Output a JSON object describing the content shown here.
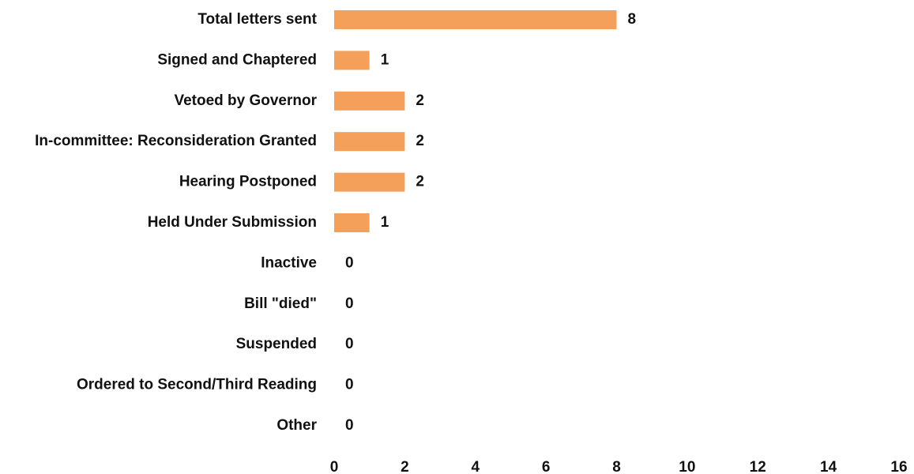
{
  "chart_data": {
    "type": "bar",
    "orientation": "horizontal",
    "categories": [
      "Total letters sent",
      "Signed and Chaptered",
      "Vetoed by Governor",
      "In-committee: Reconsideration Granted",
      "Hearing Postponed",
      "Held Under Submission",
      "Inactive",
      "Bill \"died\"",
      "Suspended",
      "Ordered to Second/Third Reading",
      "Other"
    ],
    "values": [
      8,
      1,
      2,
      2,
      2,
      1,
      0,
      0,
      0,
      0,
      0
    ],
    "data_labels": [
      "8",
      "1",
      "2",
      "2",
      "2",
      "1",
      "0",
      "0",
      "0",
      "0",
      "0"
    ],
    "xlim": [
      0,
      16
    ],
    "x_ticks": [
      "0",
      "2",
      "4",
      "6",
      "8",
      "10",
      "12",
      "14",
      "16"
    ],
    "title": "",
    "xlabel": "",
    "ylabel": "",
    "grid": false,
    "legend": "none",
    "bar_color": "#F4A05A",
    "text_color": "#111111"
  }
}
